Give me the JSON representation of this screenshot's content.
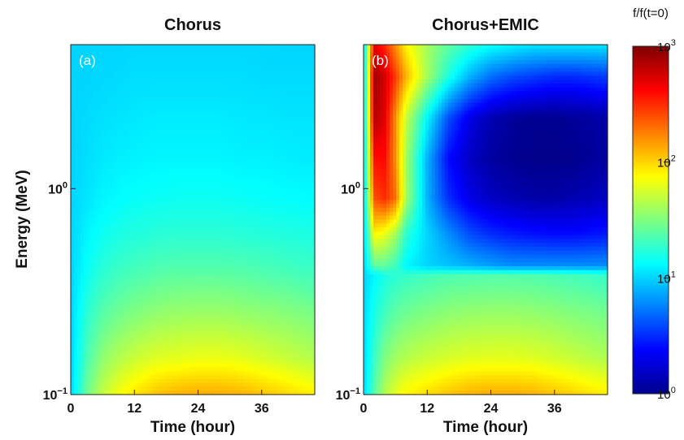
{
  "chart_data": {
    "type": "heatmap",
    "colormap": "jet",
    "colorbar": {
      "label": "f/f(t=0)",
      "scale": "log",
      "range": [
        1,
        1000
      ],
      "ticks": [
        {
          "base": "10",
          "exp": "3",
          "value": 1000
        },
        {
          "base": "10",
          "exp": "2",
          "value": 100
        },
        {
          "base": "10",
          "exp": "1",
          "value": 10
        },
        {
          "base": "10",
          "exp": "0",
          "value": 1
        }
      ]
    },
    "panels": [
      {
        "title": "Chorus",
        "panel_label": "(a)",
        "xlabel": "Time (hour)",
        "ylabel": "Energy (MeV)",
        "xlim": [
          0,
          46
        ],
        "ylim": [
          0.1,
          5.0
        ],
        "yscale": "log",
        "xticks": [
          "0",
          "12",
          "24",
          "36"
        ],
        "xtick_values": [
          0,
          12,
          24,
          36
        ],
        "yticks": [
          {
            "base": "10",
            "exp": "−1",
            "value": 0.1
          },
          {
            "base": "10",
            "exp": "0",
            "value": 1
          }
        ],
        "energy_MeV": [
          0.1,
          0.15,
          0.25,
          0.4,
          0.6,
          0.9,
          1.4,
          2.2,
          3.5,
          5.0
        ],
        "time_hour": [
          0,
          3,
          6,
          9,
          12,
          16,
          20,
          24,
          28,
          32,
          36,
          40,
          46
        ],
        "log10_ratio": [
          [
            1.0,
            1.45,
            1.7,
            1.85,
            1.95,
            2.05,
            2.1,
            2.12,
            2.12,
            2.1,
            2.05,
            2.0,
            1.92
          ],
          [
            1.0,
            1.35,
            1.55,
            1.65,
            1.72,
            1.78,
            1.8,
            1.82,
            1.82,
            1.8,
            1.76,
            1.72,
            1.65
          ],
          [
            1.0,
            1.25,
            1.38,
            1.45,
            1.5,
            1.55,
            1.57,
            1.58,
            1.58,
            1.56,
            1.54,
            1.52,
            1.48
          ],
          [
            1.0,
            1.15,
            1.25,
            1.3,
            1.33,
            1.36,
            1.38,
            1.38,
            1.38,
            1.37,
            1.35,
            1.33,
            1.3
          ],
          [
            1.0,
            1.1,
            1.16,
            1.2,
            1.22,
            1.24,
            1.25,
            1.25,
            1.25,
            1.24,
            1.23,
            1.22,
            1.2
          ],
          [
            1.0,
            1.05,
            1.1,
            1.12,
            1.14,
            1.15,
            1.16,
            1.16,
            1.16,
            1.15,
            1.14,
            1.13,
            1.12
          ],
          [
            1.0,
            1.03,
            1.06,
            1.08,
            1.09,
            1.1,
            1.1,
            1.1,
            1.1,
            1.09,
            1.09,
            1.08,
            1.07
          ],
          [
            1.0,
            1.02,
            1.04,
            1.05,
            1.06,
            1.07,
            1.07,
            1.07,
            1.07,
            1.06,
            1.06,
            1.05,
            1.05
          ],
          [
            1.0,
            1.0,
            1.01,
            1.02,
            1.03,
            1.03,
            1.03,
            1.03,
            1.03,
            1.03,
            1.02,
            1.02,
            1.02
          ],
          [
            1.0,
            1.0,
            1.0,
            1.0,
            1.01,
            1.01,
            1.01,
            1.01,
            1.01,
            1.01,
            1.01,
            1.0,
            1.0
          ]
        ]
      },
      {
        "title": "Chorus+EMIC",
        "panel_label": "(b)",
        "xlabel": "Time (hour)",
        "ylabel": "",
        "xlim": [
          0,
          46
        ],
        "ylim": [
          0.1,
          5.0
        ],
        "yscale": "log",
        "xticks": [
          "0",
          "12",
          "24",
          "36"
        ],
        "xtick_values": [
          0,
          12,
          24,
          36
        ],
        "yticks": [
          {
            "base": "10",
            "exp": "−1",
            "value": 0.1
          },
          {
            "base": "10",
            "exp": "0",
            "value": 1
          }
        ],
        "energy_MeV": [
          0.1,
          0.15,
          0.25,
          0.38,
          0.42,
          0.6,
          0.9,
          1.4,
          2.2,
          3.5,
          5.0
        ],
        "time_hour": [
          0,
          2,
          4,
          6,
          8,
          12,
          16,
          20,
          24,
          28,
          32,
          36,
          40,
          46
        ],
        "log10_ratio": [
          [
            1.0,
            1.4,
            1.65,
            1.8,
            1.9,
            1.98,
            2.05,
            2.1,
            2.12,
            2.12,
            2.1,
            2.05,
            2.0,
            1.92
          ],
          [
            1.0,
            1.3,
            1.5,
            1.6,
            1.66,
            1.72,
            1.76,
            1.79,
            1.8,
            1.8,
            1.78,
            1.75,
            1.7,
            1.64
          ],
          [
            1.0,
            1.2,
            1.32,
            1.4,
            1.45,
            1.5,
            1.54,
            1.56,
            1.57,
            1.57,
            1.55,
            1.53,
            1.5,
            1.46
          ],
          [
            1.0,
            1.1,
            1.2,
            1.25,
            1.28,
            1.32,
            1.35,
            1.36,
            1.37,
            1.37,
            1.36,
            1.34,
            1.32,
            1.28
          ],
          [
            1.0,
            1.4,
            1.4,
            1.3,
            1.1,
            1.0,
            0.95,
            0.9,
            0.85,
            0.8,
            0.8,
            0.8,
            0.8,
            0.8
          ],
          [
            1.0,
            1.9,
            1.8,
            1.6,
            1.25,
            1.0,
            0.8,
            0.6,
            0.5,
            0.45,
            0.42,
            0.4,
            0.4,
            0.45
          ],
          [
            1.0,
            2.4,
            2.5,
            2.3,
            1.6,
            0.9,
            0.5,
            0.3,
            0.2,
            0.15,
            0.12,
            0.12,
            0.15,
            0.2
          ],
          [
            1.0,
            2.6,
            2.6,
            2.2,
            1.6,
            0.9,
            0.4,
            0.2,
            0.1,
            0.05,
            0.03,
            0.03,
            0.05,
            0.1
          ],
          [
            1.0,
            2.85,
            2.7,
            2.2,
            1.7,
            1.1,
            0.6,
            0.3,
            0.15,
            0.08,
            0.05,
            0.05,
            0.08,
            0.12
          ],
          [
            1.0,
            2.9,
            2.75,
            2.45,
            2.1,
            1.6,
            1.2,
            0.9,
            0.7,
            0.6,
            0.55,
            0.5,
            0.5,
            0.55
          ],
          [
            1.0,
            2.7,
            2.5,
            2.2,
            1.9,
            1.6,
            1.4,
            1.25,
            1.15,
            1.1,
            1.05,
            1.05,
            1.05,
            1.05
          ]
        ]
      }
    ]
  }
}
